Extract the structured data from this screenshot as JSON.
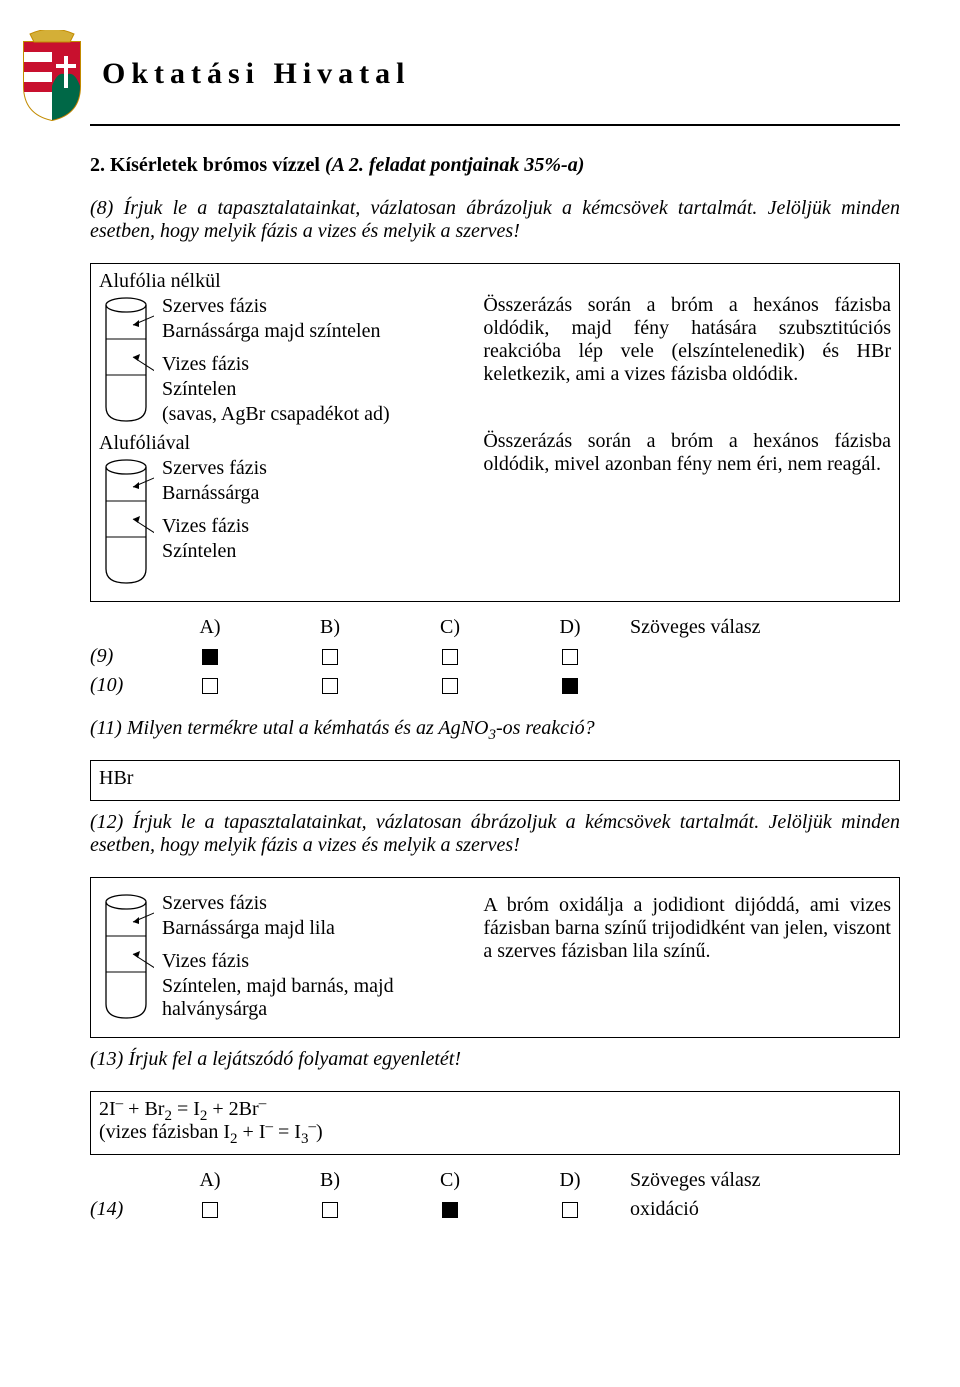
{
  "header": {
    "title": "Oktatási Hivatal"
  },
  "coat_colors": {
    "red": "#c8102e",
    "green": "#006847",
    "gold": "#d4af37",
    "white": "#ffffff",
    "outline": "#c28b00"
  },
  "sec2": {
    "title_lead": "2.  Kísérletek brómos vízzel ",
    "title_ital": "(A 2. feladat pontjainak 35%-a)",
    "q8": "(8) Írjuk le a tapasztalatainkat, vázlatosan ábrázoljuk a kémcsövek tartalmát. Jelöljük minden esetben, hogy melyik fázis a vizes és melyik a szerves!",
    "exp1": {
      "label": "Alufólia nélkül",
      "org_phase": "Szerves fázis",
      "org_note": "Barnássárga majd színtelen",
      "aq_phase": "Vizes fázis",
      "aq_note": "Színtelen",
      "aq_extra": "(savas, AgBr csapadékot ad)",
      "explain": "Összerázás során a bróm a hexános fázisba oldódik, majd fény hatására szubsztitúciós reakcióba lép vele (elszíntelenedik) és HBr keletkezik, ami a vizes fázisba oldódik."
    },
    "exp2": {
      "label": "Alufóliával",
      "org_phase": "Szerves fázis",
      "org_note": "Barnássárga",
      "aq_phase": "Vizes fázis",
      "aq_note": "Színtelen",
      "explain": "Összerázás során a bróm a hexános fázisba oldódik, mivel azonban fény nem éri, nem reagál."
    },
    "grid": {
      "cols": [
        "A)",
        "B)",
        "C)",
        "D)",
        "Szöveges válasz"
      ],
      "rows": [
        {
          "label": "(9)",
          "cells": [
            "filled",
            "empty",
            "empty",
            "empty"
          ],
          "text": ""
        },
        {
          "label": "(10)",
          "cells": [
            "empty",
            "empty",
            "empty",
            "filled"
          ],
          "text": ""
        }
      ]
    },
    "q11": "(11) Milyen termékre utal a kémhatás és az AgNO",
    "q11_sub": "3",
    "q11_tail": "-os reakció?",
    "a11": "HBr",
    "q12": "(12) Írjuk le a tapasztalatainkat, vázlatosan ábrázoljuk a kémcsövek tartalmát. Jelöljük minden esetben, hogy melyik fázis a vizes és melyik a szerves!",
    "exp3": {
      "org_phase": "Szerves fázis",
      "org_note": "Barnássárga majd lila",
      "aq_phase": "Vizes fázis",
      "aq_note": "Színtelen, majd barnás, majd halványsárga",
      "explain": "A bróm oxidálja a jodidiont dijóddá, ami vizes fázisban barna színű trijodidként van jelen, viszont a szerves fázisban lila színű."
    },
    "q13": "(13) Írjuk fel a lejátszódó folyamat egyenletét!",
    "grid2": {
      "cols": [
        "A)",
        "B)",
        "C)",
        "D)",
        "Szöveges válasz"
      ],
      "rows": [
        {
          "label": "(14)",
          "cells": [
            "empty",
            "empty",
            "filled",
            "empty"
          ],
          "text": "oxidáció"
        }
      ]
    }
  }
}
